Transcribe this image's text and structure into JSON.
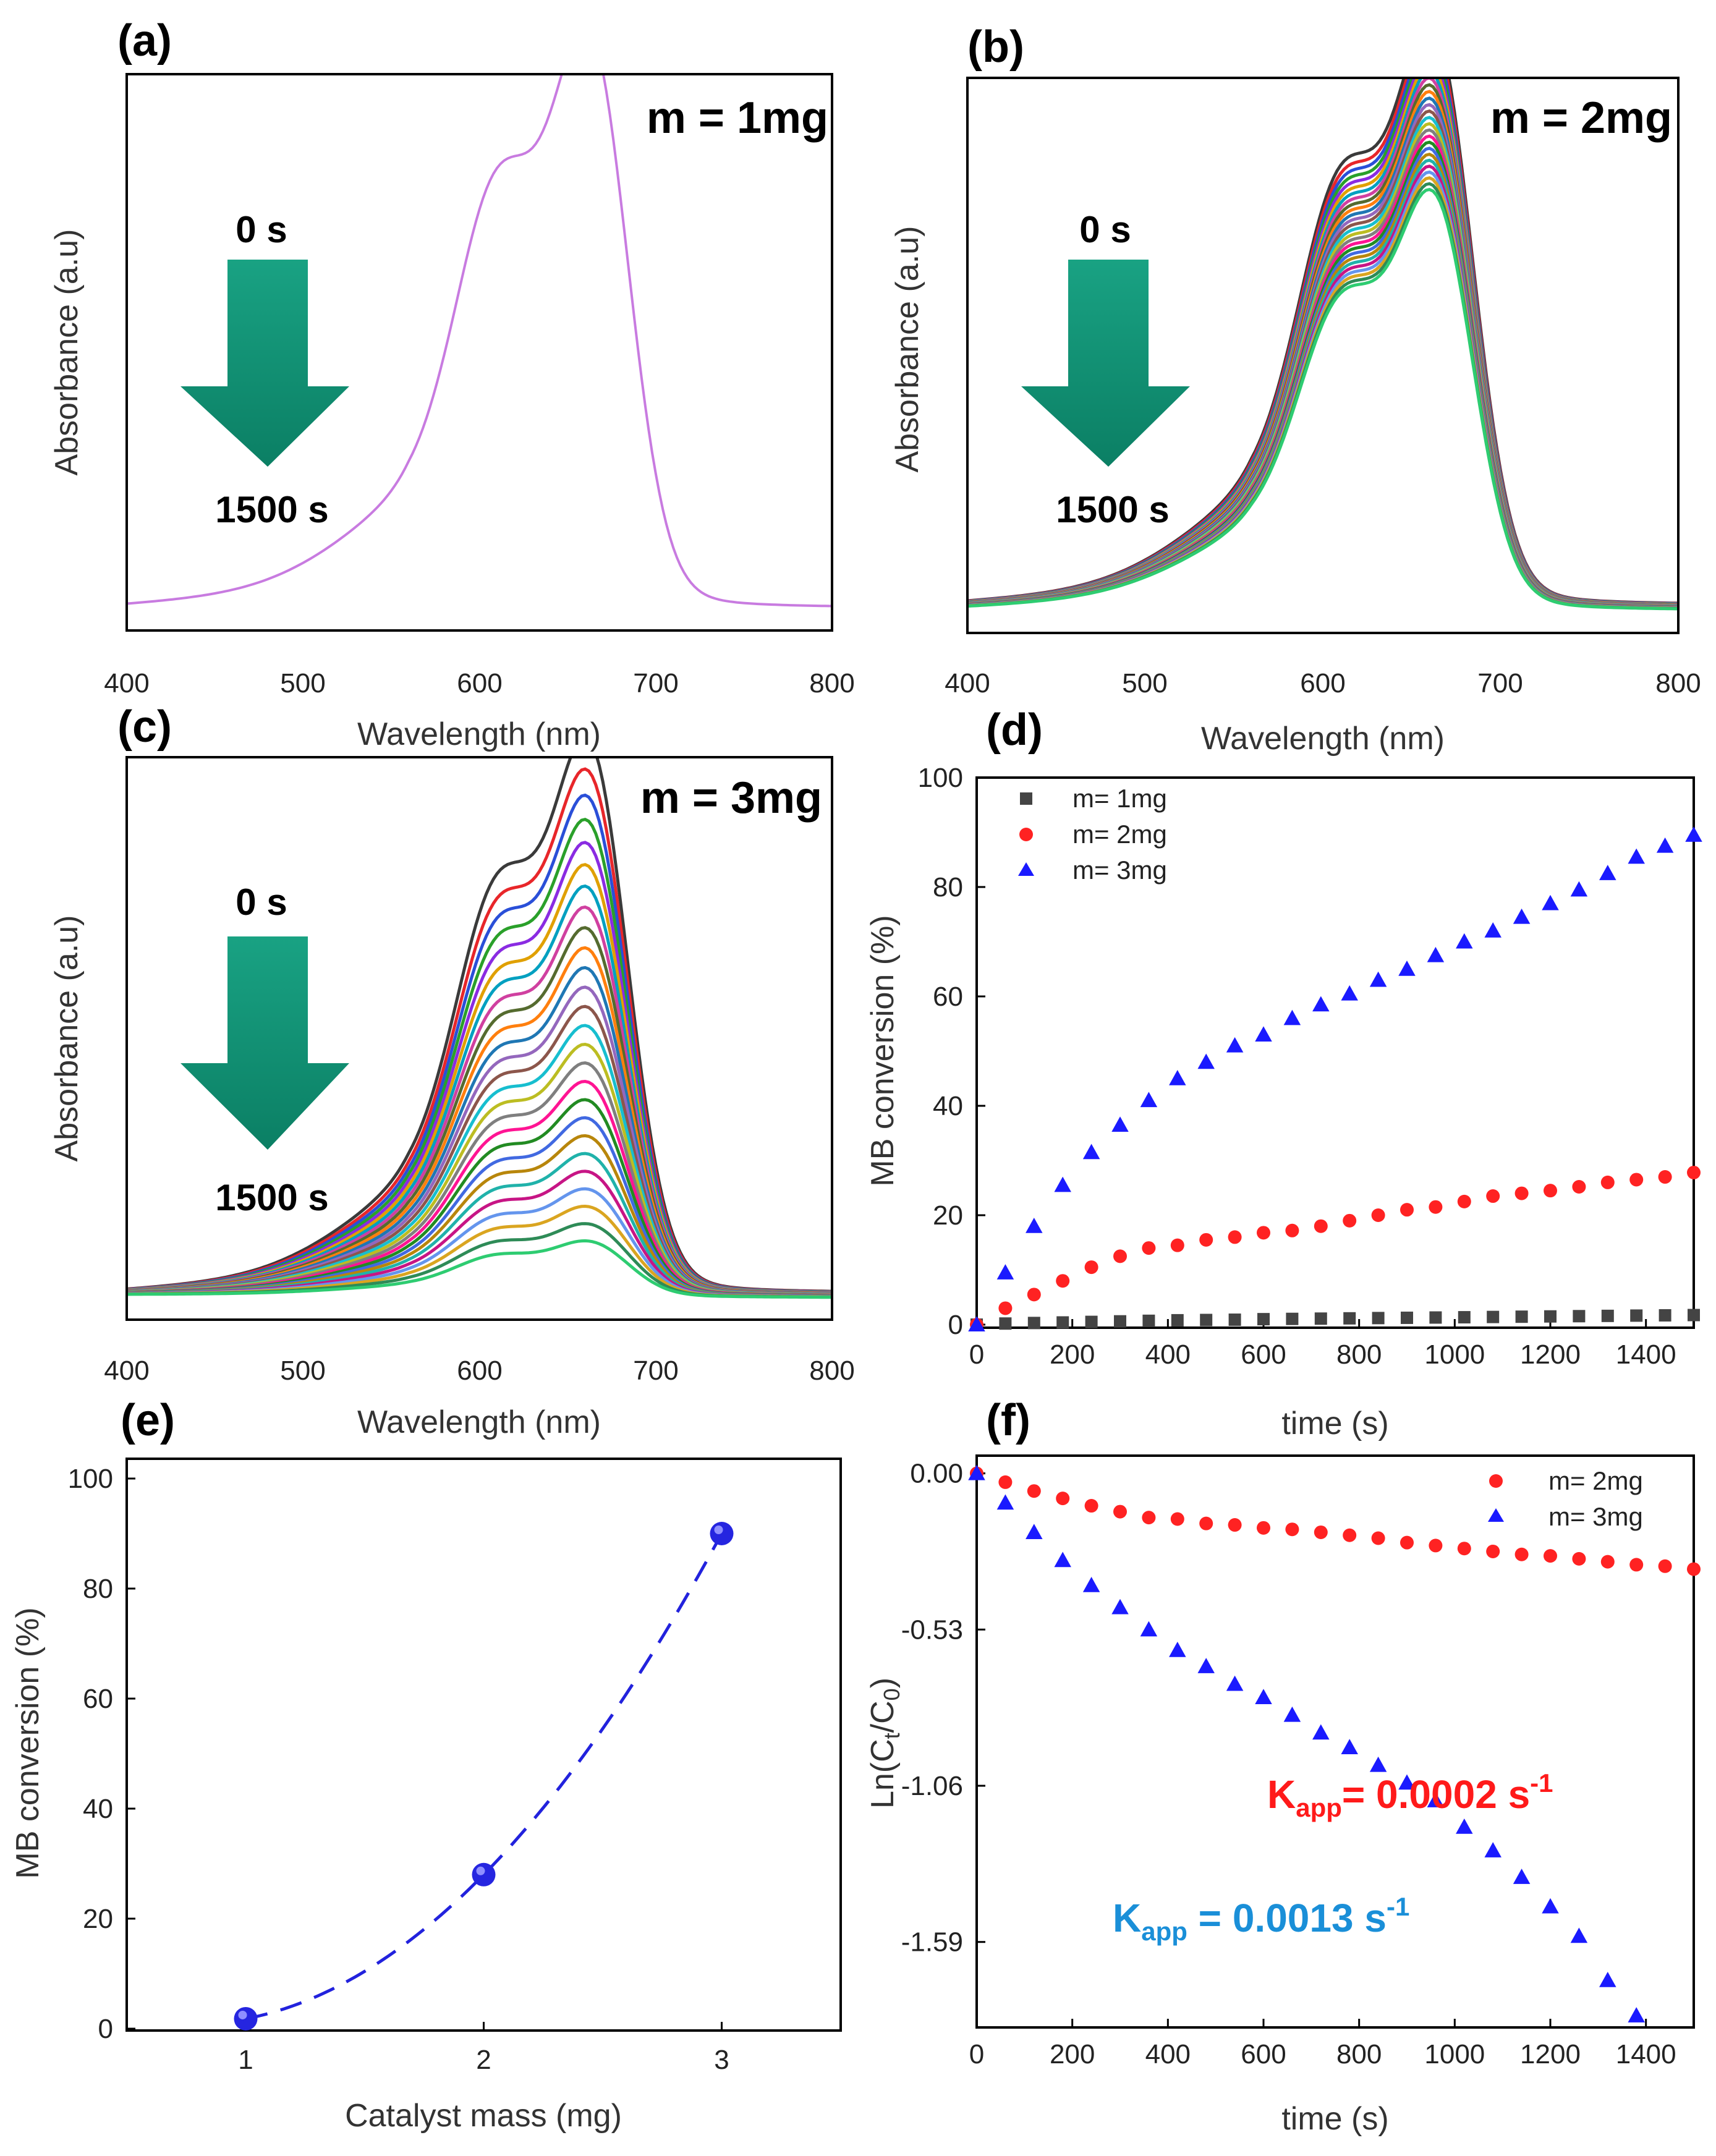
{
  "colors": {
    "red": "#ff2222",
    "blue": "#1a1aff",
    "black": "#444444",
    "arrow": "#0f9a7a",
    "k_red": "#ff1a1a",
    "k_blue": "#1a8fd8"
  },
  "chart_data": [
    {
      "id": "a",
      "panel_label": "(a)",
      "type": "line",
      "title": "m = 1mg",
      "xlabel": "Wavelength (nm)",
      "ylabel": "Absorbance (a.u)",
      "xlim": [
        400,
        800
      ],
      "xticks": [
        "400",
        "500",
        "600",
        "700",
        "800"
      ],
      "arrow_top": "0 s",
      "arrow_bottom": "1500 s",
      "n_curves": 1,
      "peak_scale_end": 1.0
    },
    {
      "id": "b",
      "panel_label": "(b)",
      "type": "line",
      "title": "m = 2mg",
      "xlabel": "Wavelength (nm)",
      "ylabel": "Absorbance (a.u)",
      "xlim": [
        400,
        800
      ],
      "xticks": [
        "400",
        "500",
        "600",
        "700",
        "800"
      ],
      "arrow_top": "0 s",
      "arrow_bottom": "1500 s",
      "n_curves": 26,
      "peak_scale_end": 0.72
    },
    {
      "id": "c",
      "panel_label": "(c)",
      "type": "line",
      "title": "m = 3mg",
      "xlabel": "Wavelength (nm)",
      "ylabel": "Absorbance (a.u)",
      "xlim": [
        400,
        800
      ],
      "xticks": [
        "400",
        "500",
        "600",
        "700",
        "800"
      ],
      "arrow_top": "0 s",
      "arrow_bottom": "1500 s",
      "n_curves": 26,
      "peak_scale_end": 0.1
    },
    {
      "id": "d",
      "panel_label": "(d)",
      "type": "scatter",
      "xlabel": "time (s)",
      "ylabel": "MB conversion (%)",
      "xlim": [
        0,
        1500
      ],
      "ylim": [
        0,
        100
      ],
      "xticks": [
        0,
        200,
        400,
        600,
        800,
        1000,
        1200,
        1400
      ],
      "yticks": [
        0,
        20,
        40,
        60,
        80,
        100
      ],
      "x": [
        0,
        60,
        120,
        180,
        240,
        300,
        360,
        420,
        480,
        540,
        600,
        660,
        720,
        780,
        840,
        900,
        960,
        1020,
        1080,
        1140,
        1200,
        1260,
        1320,
        1380,
        1440,
        1500
      ],
      "series": [
        {
          "name": "m= 1mg",
          "marker": "square",
          "color": "#444444",
          "values": [
            0,
            0.2,
            0.3,
            0.4,
            0.5,
            0.6,
            0.7,
            0.8,
            0.85,
            0.9,
            1.0,
            1.05,
            1.1,
            1.15,
            1.2,
            1.25,
            1.3,
            1.35,
            1.4,
            1.45,
            1.5,
            1.55,
            1.6,
            1.65,
            1.7,
            1.75
          ]
        },
        {
          "name": "m= 2mg",
          "marker": "circle",
          "color": "#ff2222",
          "values": [
            0,
            3,
            5.5,
            8,
            10.5,
            12.5,
            14,
            14.5,
            15.5,
            16,
            16.8,
            17.2,
            18,
            19,
            20,
            21,
            21.5,
            22.5,
            23.5,
            24,
            24.5,
            25.2,
            26,
            26.5,
            27,
            27.8
          ]
        },
        {
          "name": "m= 3mg",
          "marker": "triangle",
          "color": "#1a1aff",
          "values": [
            0,
            9.5,
            18,
            25.5,
            31.5,
            36.5,
            41,
            45,
            48,
            51,
            53,
            56,
            58.5,
            60.5,
            63,
            65,
            67.5,
            70,
            72,
            74.5,
            77,
            79.5,
            82.5,
            85.5,
            87.5,
            89.5
          ]
        }
      ]
    },
    {
      "id": "e",
      "panel_label": "(e)",
      "type": "scatter",
      "xlabel": "Catalyst mass (mg)",
      "ylabel": "MB conversion (%)",
      "xlim": [
        0.5,
        3.5
      ],
      "ylim": [
        0,
        100
      ],
      "xticks": [
        1,
        2,
        3
      ],
      "yticks": [
        0,
        20,
        40,
        60,
        80,
        100
      ],
      "x": [
        1,
        2,
        3
      ],
      "values": [
        1.8,
        28,
        90
      ],
      "fit": "dashed quadratic"
    },
    {
      "id": "f",
      "panel_label": "(f)",
      "type": "scatter",
      "xlabel": "time (s)",
      "ylabel": "Ln(Ct/C0)",
      "ylabel_parts": [
        "Ln(C",
        "t",
        "/C",
        "0",
        ")"
      ],
      "xlim": [
        0,
        1500
      ],
      "ylim": [
        -1.88,
        0.06
      ],
      "xticks": [
        0,
        200,
        400,
        600,
        800,
        1000,
        1200,
        1400
      ],
      "yticks": [
        "0.00",
        "-0.53",
        "-1.06",
        "-1.59"
      ],
      "ytick_values": [
        0,
        -0.53,
        -1.06,
        -1.59
      ],
      "x_red": [
        0,
        60,
        120,
        180,
        240,
        300,
        360,
        420,
        480,
        540,
        600,
        660,
        720,
        780,
        840,
        900,
        960,
        1020,
        1080,
        1140,
        1200,
        1260,
        1320,
        1380,
        1440,
        1500
      ],
      "x_blue": [
        0,
        60,
        120,
        180,
        240,
        300,
        360,
        420,
        480,
        540,
        600,
        660,
        720,
        780,
        840,
        900,
        960,
        1020,
        1080,
        1140,
        1200,
        1260,
        1320,
        1380
      ],
      "series": [
        {
          "name": "m= 2mg",
          "marker": "circle",
          "color": "#ff2222",
          "values": [
            0,
            -0.03,
            -0.06,
            -0.085,
            -0.11,
            -0.13,
            -0.15,
            -0.155,
            -0.17,
            -0.175,
            -0.185,
            -0.19,
            -0.2,
            -0.21,
            -0.22,
            -0.235,
            -0.245,
            -0.255,
            -0.265,
            -0.275,
            -0.28,
            -0.29,
            -0.3,
            -0.31,
            -0.315,
            -0.325
          ]
        },
        {
          "name": "m= 3mg",
          "marker": "triangle",
          "color": "#1a1aff",
          "values": [
            0,
            -0.1,
            -0.2,
            -0.295,
            -0.38,
            -0.455,
            -0.53,
            -0.6,
            -0.655,
            -0.715,
            -0.76,
            -0.82,
            -0.88,
            -0.93,
            -0.99,
            -1.05,
            -1.11,
            -1.2,
            -1.28,
            -1.37,
            -1.47,
            -1.57,
            -1.72,
            -1.84
          ]
        }
      ],
      "annotation_red": {
        "k": "K",
        "sub": "app",
        "eq": "= 0.0002 s",
        "sup": "-1"
      },
      "annotation_blue": {
        "k": "K",
        "sub": "app",
        "eq": " = 0.0013 s",
        "sup": "-1"
      }
    }
  ]
}
